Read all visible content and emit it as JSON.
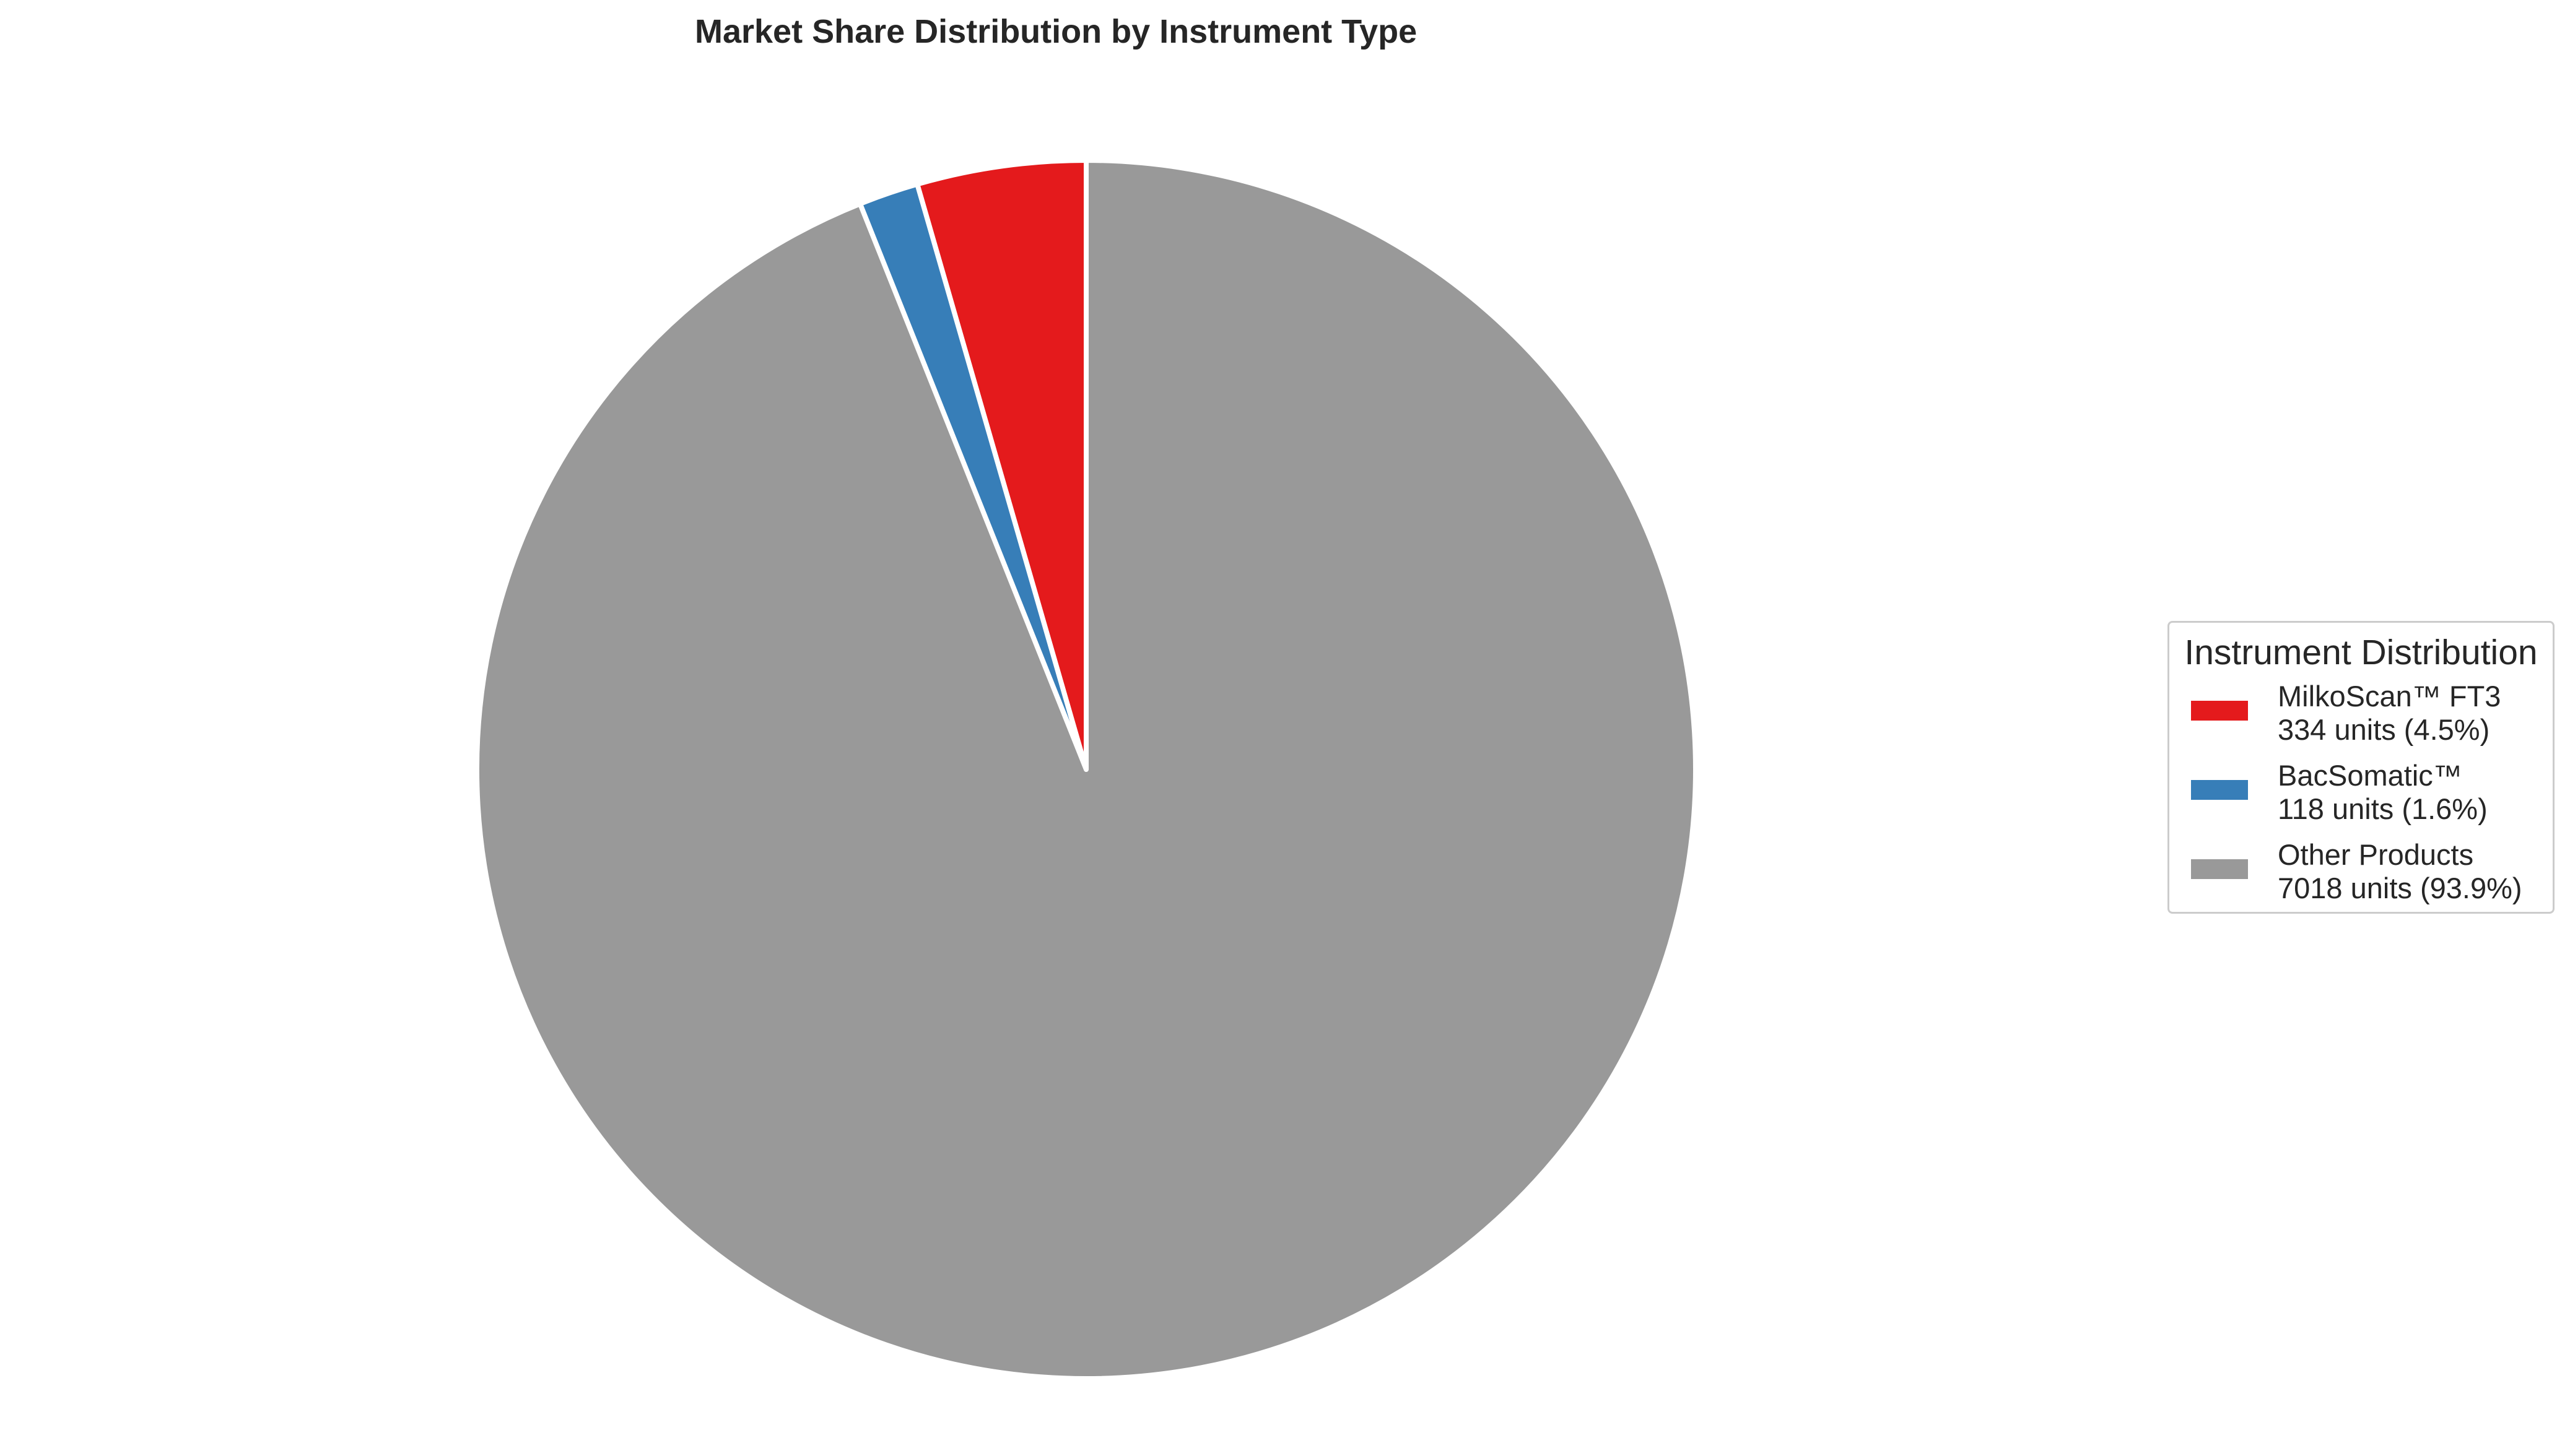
{
  "chart_data": {
    "type": "pie",
    "title": "Market Share Distribution by Instrument Type",
    "start_angle_deg": 90,
    "direction": "counterclockwise",
    "slices": [
      {
        "label": "MilkoScan™ FT3",
        "value": 334,
        "percent_label": "4.5%",
        "units_label": "334 units (4.5%)",
        "color": "#e41a1c"
      },
      {
        "label": "BacSomatic™",
        "value": 118,
        "percent_label": "1.6%",
        "units_label": "118 units (1.6%)",
        "color": "#377eb8"
      },
      {
        "label": "Other Products",
        "value": 7018,
        "percent_label": "93.9%",
        "units_label": "7018 units (93.9%)",
        "color": "#999999"
      }
    ],
    "legend": {
      "title": "Instrument Distribution",
      "placement": "right"
    },
    "edge_color": "#ffffff"
  }
}
